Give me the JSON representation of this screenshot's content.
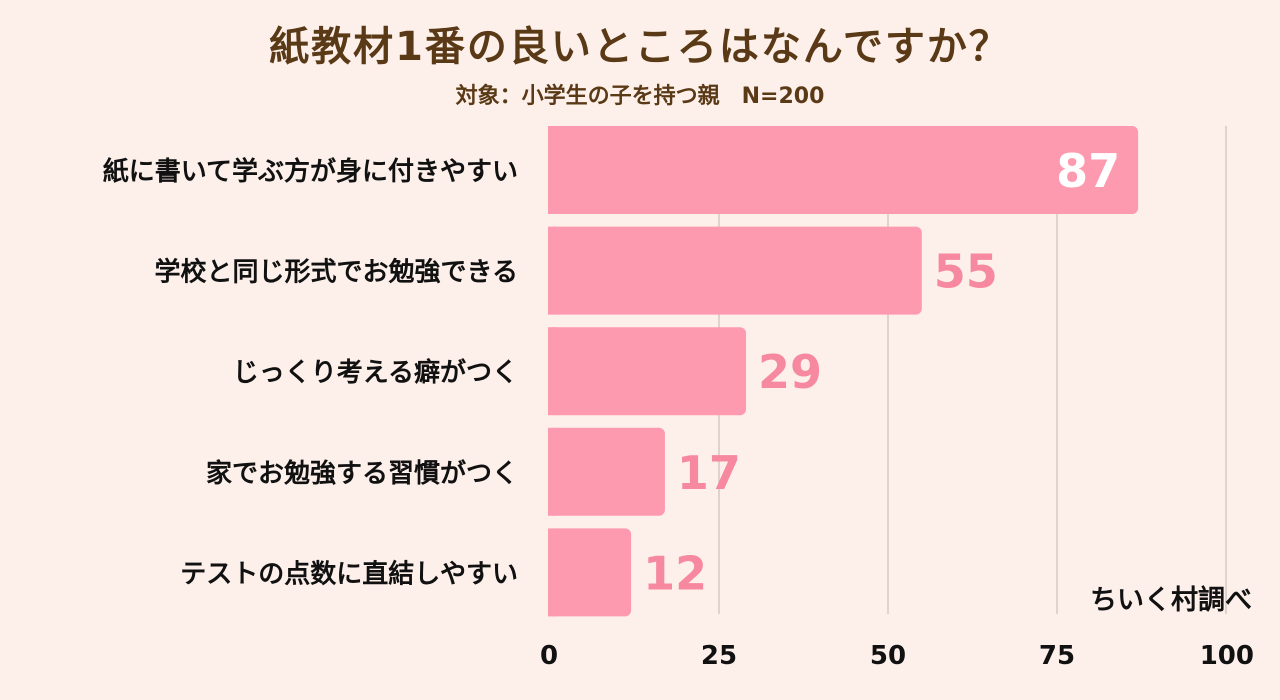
{
  "title": "紙教材1番の良いところはなんですか？",
  "subtitle": "対象：小学生の子を持つ親　N=200",
  "credit": "ちいく村調べ",
  "colors": {
    "bar": "#fe9aaf",
    "value_inside": "#ffffff",
    "value_outside": "#f6899f",
    "grid": "#d6c7c3",
    "title": "#5a3a16",
    "labels": "#111111"
  },
  "chart_data": {
    "type": "bar",
    "orientation": "horizontal",
    "categories": [
      "紙に書いて学ぶ方が身に付きやすい",
      "学校と同じ形式でお勉強できる",
      "じっくり考える癖がつく",
      "家でお勉強する習慣がつく",
      "テストの点数に直結しやすい"
    ],
    "values": [
      87,
      55,
      29,
      17,
      12
    ],
    "xlim": [
      0,
      100
    ],
    "xticks": [
      0,
      25,
      50,
      75,
      100
    ],
    "grid": true,
    "xlabel": "",
    "ylabel": ""
  }
}
